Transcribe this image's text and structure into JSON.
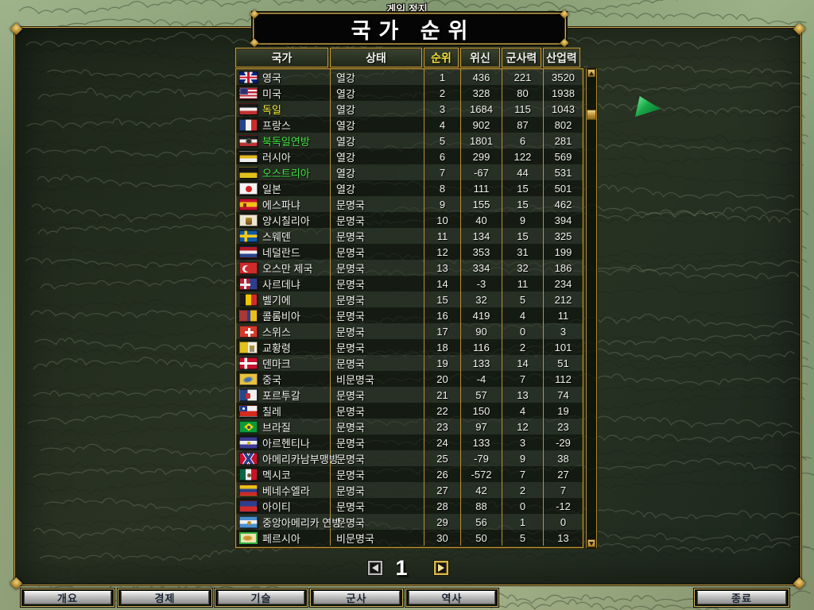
{
  "pause_label": "게임 정지",
  "title": "국가 순위",
  "table": {
    "headers": [
      {
        "key": "country",
        "label": "국가",
        "sorted": false
      },
      {
        "key": "status",
        "label": "상태",
        "sorted": false
      },
      {
        "key": "rank",
        "label": "순위",
        "sorted": true
      },
      {
        "key": "prestige",
        "label": "위신",
        "sorted": false
      },
      {
        "key": "military",
        "label": "군사력",
        "sorted": false
      },
      {
        "key": "industry",
        "label": "산업력",
        "sorted": false
      }
    ],
    "rows": [
      {
        "country": "영국",
        "flag": "uk",
        "name_color": "white",
        "status": "열강",
        "rank": 1,
        "prestige": 436,
        "military": 221,
        "industry": 3520
      },
      {
        "country": "미국",
        "flag": "usa",
        "name_color": "white",
        "status": "열강",
        "rank": 2,
        "prestige": 328,
        "military": 80,
        "industry": 1938
      },
      {
        "country": "독일",
        "flag": "de",
        "name_color": "yellow",
        "status": "열강",
        "rank": 3,
        "prestige": 1684,
        "military": 115,
        "industry": 1043
      },
      {
        "country": "프랑스",
        "flag": "fr",
        "name_color": "white",
        "status": "열강",
        "rank": 4,
        "prestige": 902,
        "military": 87,
        "industry": 802
      },
      {
        "country": "북독일연방",
        "flag": "ngf",
        "name_color": "green",
        "status": "열강",
        "rank": 5,
        "prestige": 1801,
        "military": 6,
        "industry": 281
      },
      {
        "country": "러시아",
        "flag": "ru",
        "name_color": "white",
        "status": "열강",
        "rank": 6,
        "prestige": 299,
        "military": 122,
        "industry": 569
      },
      {
        "country": "오스트리아",
        "flag": "at",
        "name_color": "green",
        "status": "열강",
        "rank": 7,
        "prestige": -67,
        "military": 44,
        "industry": 531
      },
      {
        "country": "일본",
        "flag": "jp",
        "name_color": "white",
        "status": "열강",
        "rank": 8,
        "prestige": 111,
        "military": 15,
        "industry": 501
      },
      {
        "country": "에스파냐",
        "flag": "es",
        "name_color": "white",
        "status": "문명국",
        "rank": 9,
        "prestige": 155,
        "military": 15,
        "industry": 462
      },
      {
        "country": "양시칠리아",
        "flag": "sic",
        "name_color": "white",
        "status": "문명국",
        "rank": 10,
        "prestige": 40,
        "military": 9,
        "industry": 394
      },
      {
        "country": "스웨덴",
        "flag": "se",
        "name_color": "white",
        "status": "문명국",
        "rank": 11,
        "prestige": 134,
        "military": 15,
        "industry": 325
      },
      {
        "country": "네덜란드",
        "flag": "nl",
        "name_color": "white",
        "status": "문명국",
        "rank": 12,
        "prestige": 353,
        "military": 31,
        "industry": 199
      },
      {
        "country": "오스만 제국",
        "flag": "tr",
        "name_color": "white",
        "status": "문명국",
        "rank": 13,
        "prestige": 334,
        "military": 32,
        "industry": 186
      },
      {
        "country": "사르데냐",
        "flag": "sar",
        "name_color": "white",
        "status": "문명국",
        "rank": 14,
        "prestige": -3,
        "military": 11,
        "industry": 234
      },
      {
        "country": "벨기에",
        "flag": "be",
        "name_color": "white",
        "status": "문명국",
        "rank": 15,
        "prestige": 32,
        "military": 5,
        "industry": 212
      },
      {
        "country": "콜롬비아",
        "flag": "co",
        "name_color": "white",
        "status": "문명국",
        "rank": 16,
        "prestige": 419,
        "military": 4,
        "industry": 11
      },
      {
        "country": "스위스",
        "flag": "ch",
        "name_color": "white",
        "status": "문명국",
        "rank": 17,
        "prestige": 90,
        "military": 0,
        "industry": 3
      },
      {
        "country": "교황령",
        "flag": "pap",
        "name_color": "white",
        "status": "문명국",
        "rank": 18,
        "prestige": 116,
        "military": 2,
        "industry": 101
      },
      {
        "country": "덴마크",
        "flag": "dk",
        "name_color": "white",
        "status": "문명국",
        "rank": 19,
        "prestige": 133,
        "military": 14,
        "industry": 51
      },
      {
        "country": "중국",
        "flag": "cn",
        "name_color": "white",
        "status": "비문명국",
        "rank": 20,
        "prestige": -4,
        "military": 7,
        "industry": 112
      },
      {
        "country": "포르투갈",
        "flag": "pt",
        "name_color": "white",
        "status": "문명국",
        "rank": 21,
        "prestige": 57,
        "military": 13,
        "industry": 74
      },
      {
        "country": "칠레",
        "flag": "cl",
        "name_color": "white",
        "status": "문명국",
        "rank": 22,
        "prestige": 150,
        "military": 4,
        "industry": 19
      },
      {
        "country": "브라질",
        "flag": "br",
        "name_color": "white",
        "status": "문명국",
        "rank": 23,
        "prestige": 97,
        "military": 12,
        "industry": 23
      },
      {
        "country": "아르헨티나",
        "flag": "ar",
        "name_color": "white",
        "status": "문명국",
        "rank": 24,
        "prestige": 133,
        "military": 3,
        "industry": -29
      },
      {
        "country": "아메리카남부맹방",
        "flag": "csa",
        "name_color": "white",
        "status": "문명국",
        "rank": 25,
        "prestige": -79,
        "military": 9,
        "industry": 38
      },
      {
        "country": "멕시코",
        "flag": "mx",
        "name_color": "white",
        "status": "문명국",
        "rank": 26,
        "prestige": -572,
        "military": 7,
        "industry": 27
      },
      {
        "country": "베네수엘라",
        "flag": "ve",
        "name_color": "white",
        "status": "문명국",
        "rank": 27,
        "prestige": 42,
        "military": 2,
        "industry": 7
      },
      {
        "country": "아이티",
        "flag": "ht",
        "name_color": "white",
        "status": "문명국",
        "rank": 28,
        "prestige": 88,
        "military": 0,
        "industry": -12
      },
      {
        "country": "중앙아메리카 연방",
        "flag": "cam",
        "name_color": "white",
        "status": "문명국",
        "rank": 29,
        "prestige": 56,
        "military": 1,
        "industry": 0
      },
      {
        "country": "페르시아",
        "flag": "pe",
        "name_color": "white",
        "status": "비문명국",
        "rank": 30,
        "prestige": 50,
        "military": 5,
        "industry": 13
      }
    ]
  },
  "pager": {
    "page": "1",
    "prev_icon": "left-arrow",
    "next_icon": "right-arrow"
  },
  "scrollbar": {
    "up_icon": "up-arrow",
    "down_icon": "down-arrow"
  },
  "toolbar": {
    "buttons": [
      {
        "key": "overview",
        "label": "개요"
      },
      {
        "key": "economy",
        "label": "경제"
      },
      {
        "key": "technology",
        "label": "기술"
      },
      {
        "key": "military",
        "label": "군사"
      },
      {
        "key": "history",
        "label": "역사"
      }
    ],
    "exit_label": "종료"
  },
  "colors": {
    "gold": "#c9a54f",
    "player_yellow": "#f8f23a",
    "sphere_green": "#3fe53f",
    "sorted_header": "#f6e23a"
  }
}
